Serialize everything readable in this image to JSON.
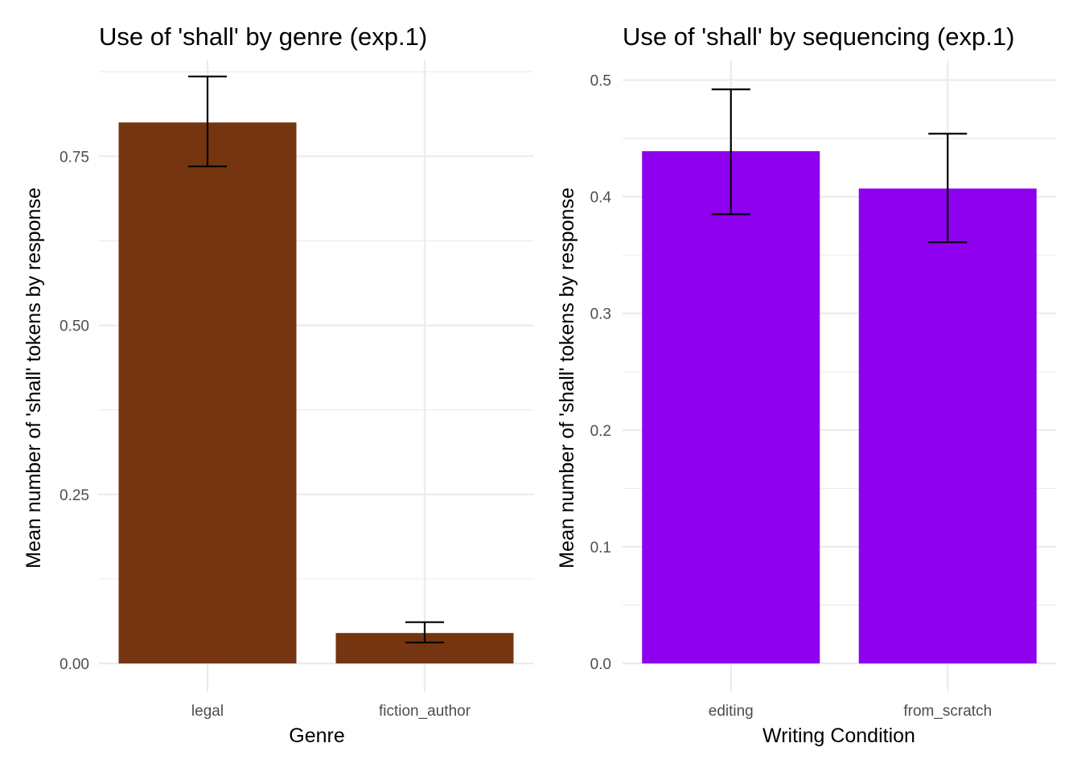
{
  "chart_data": [
    {
      "type": "bar",
      "title": "Use of 'shall' by genre (exp.1)",
      "xlabel": "Genre",
      "ylabel": "Mean number of 'shall' tokens by response",
      "categories": [
        "legal",
        "fiction_author"
      ],
      "values": [
        0.8,
        0.045
      ],
      "error_low": [
        0.735,
        0.031
      ],
      "error_high": [
        0.868,
        0.061
      ],
      "ylim": [
        0,
        0.88
      ],
      "yticks": [
        0,
        0.25,
        0.5,
        0.75
      ],
      "ytick_labels": [
        "0.00",
        "0.25",
        "0.50",
        "0.75"
      ],
      "bar_color": "#753510",
      "grid": true,
      "legend": "none"
    },
    {
      "type": "bar",
      "title": "Use of 'shall' by sequencing (exp.1)",
      "xlabel": "Writing Condition",
      "ylabel": "Mean number of 'shall' tokens by response",
      "categories": [
        "editing",
        "from_scratch"
      ],
      "values": [
        0.439,
        0.407
      ],
      "error_low": [
        0.385,
        0.361
      ],
      "error_high": [
        0.492,
        0.454
      ],
      "ylim": [
        0,
        0.51
      ],
      "yticks": [
        0,
        0.1,
        0.2,
        0.3,
        0.4,
        0.5
      ],
      "ytick_labels": [
        "0.0",
        "0.1",
        "0.2",
        "0.3",
        "0.4",
        "0.5"
      ],
      "bar_color": "#8e00ee",
      "grid": true,
      "legend": "none"
    }
  ]
}
